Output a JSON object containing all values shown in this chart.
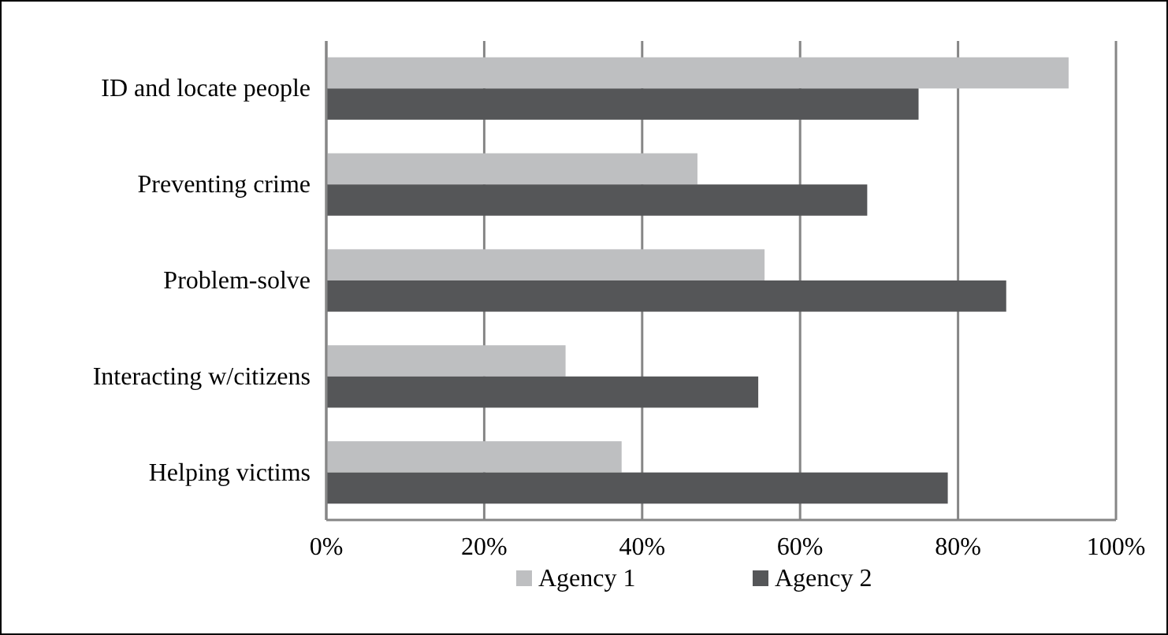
{
  "chart_data": {
    "type": "bar",
    "orientation": "horizontal",
    "categories": [
      "ID and locate people",
      "Preventing crime",
      "Problem-solve",
      "Interacting w/citizens",
      "Helping victims"
    ],
    "series": [
      {
        "name": "Agency 1",
        "color": "#bebfc1",
        "values": [
          94,
          47,
          55.5,
          30.3,
          37.4
        ]
      },
      {
        "name": "Agency 2",
        "color": "#555658",
        "values": [
          75,
          68.5,
          86.1,
          54.7,
          78.7
        ]
      }
    ],
    "xlim": [
      0,
      100
    ],
    "xticks": [
      {
        "value": 0,
        "label": "0%"
      },
      {
        "value": 20,
        "label": "20%"
      },
      {
        "value": 40,
        "label": "40%"
      },
      {
        "value": 60,
        "label": "60%"
      },
      {
        "value": 80,
        "label": "80%"
      },
      {
        "value": 100,
        "label": "100%"
      }
    ],
    "grid": "x",
    "legend": "bottom"
  }
}
